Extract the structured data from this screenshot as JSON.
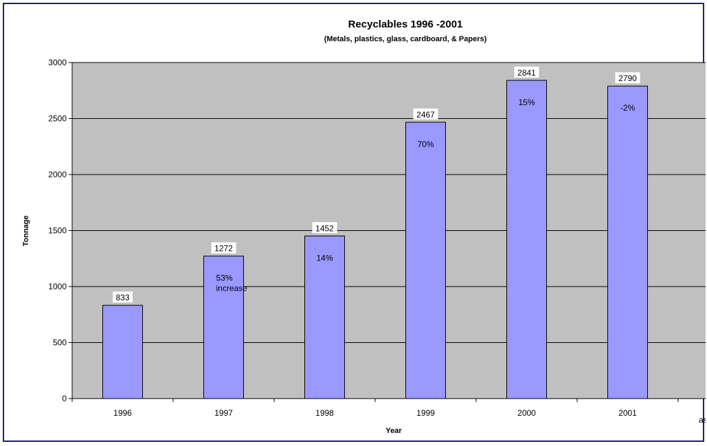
{
  "chart_data": {
    "type": "bar",
    "title": "Recyclables 1996 -2001",
    "subtitle": "(Metals, plastics, glass, cardboard, & Papers)",
    "xlabel": "Year",
    "ylabel": "Tonnage",
    "categories": [
      "1996",
      "1997",
      "1998",
      "1999",
      "2000",
      "2001"
    ],
    "values": [
      833,
      1272,
      1452,
      2467,
      2841,
      2790
    ],
    "data_labels": [
      "833",
      "1272",
      "1452",
      "2467",
      "2841",
      "2790"
    ],
    "annotations": [
      "",
      "53%\nincrease",
      "14%",
      "70%",
      "15%",
      "-2%"
    ],
    "yticks": [
      0,
      500,
      1000,
      1500,
      2000,
      2500,
      3000
    ],
    "ylim": [
      0,
      3000
    ],
    "grid": true,
    "legend": "none",
    "clipped_text": "as",
    "colors": {
      "plot_background": "#c0c0c0",
      "bar_fill": "#9999ff",
      "bar_stroke": "#000000",
      "gridline": "#000000",
      "frame": "#1b1b8a"
    }
  }
}
